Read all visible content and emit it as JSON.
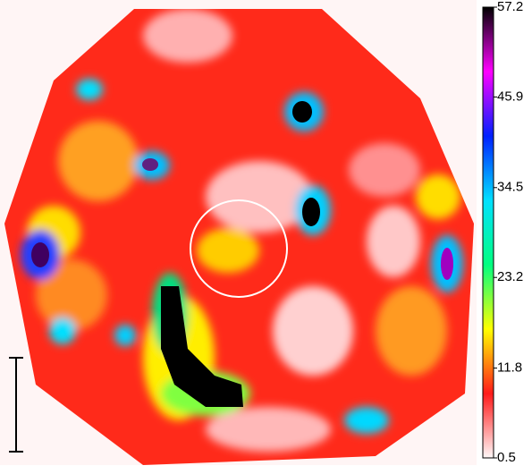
{
  "chart_data": {
    "type": "heatmap",
    "colorbar": {
      "lim": [
        0.5,
        57.2
      ],
      "ticks": [
        0.5,
        11.8,
        23.2,
        34.5,
        45.9,
        57.2
      ],
      "colors": [
        "#fff8f8",
        "#ff1a1a",
        "#ffff00",
        "#00ff80",
        "#00e0ff",
        "#0020ff",
        "#ff00ff",
        "#000000"
      ]
    }
  }
}
